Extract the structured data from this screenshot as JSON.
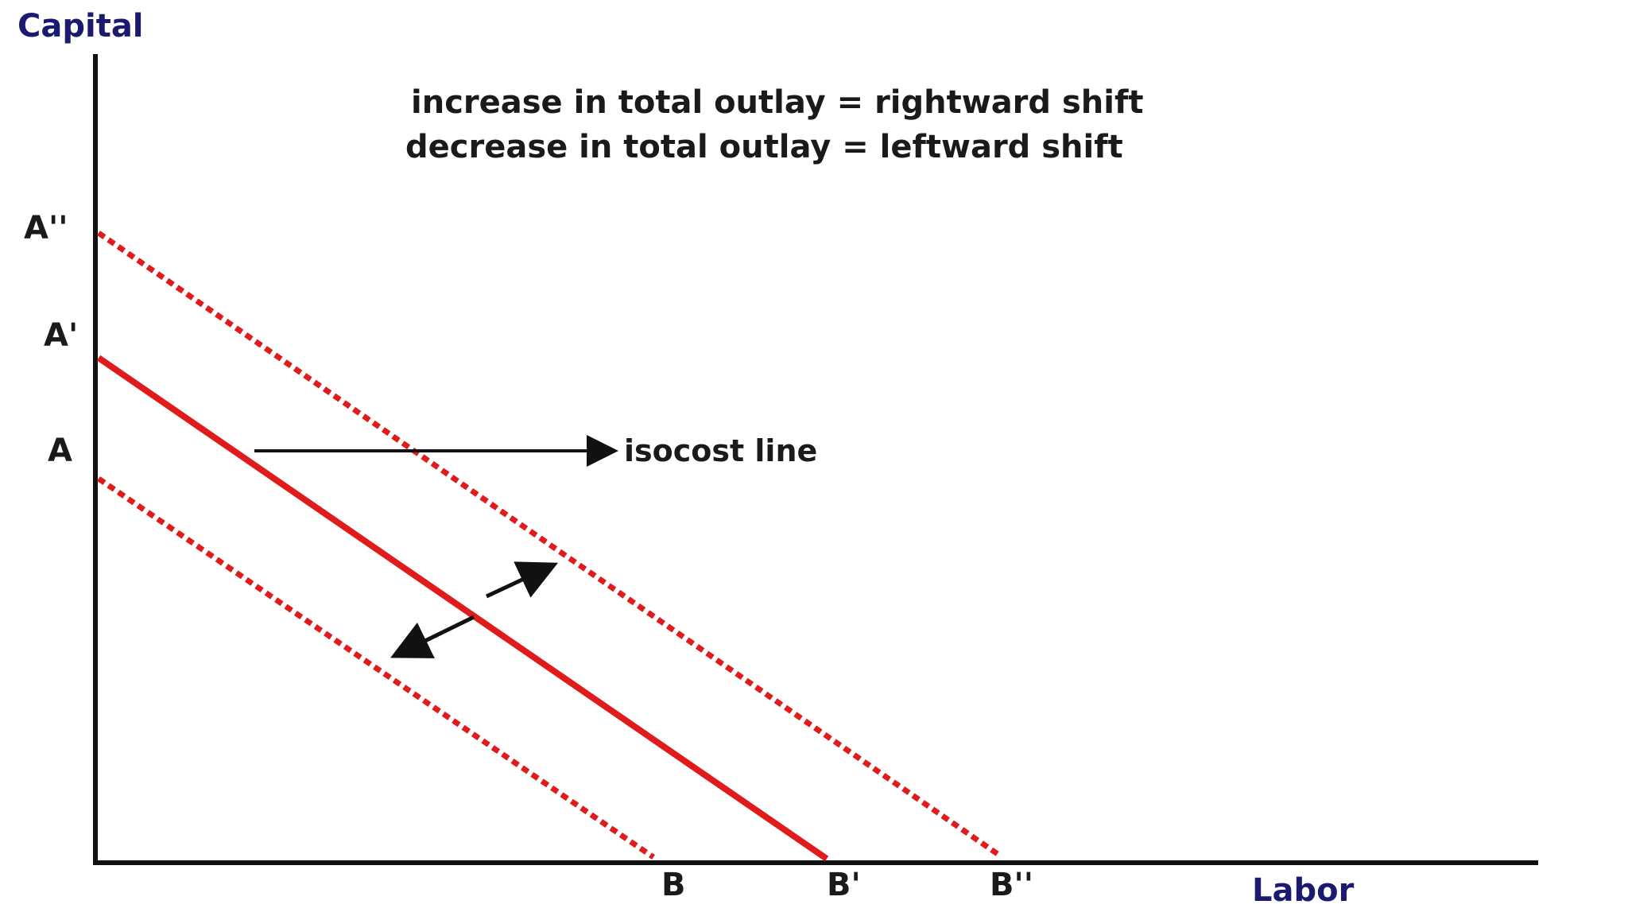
{
  "axes": {
    "y_label": "Capital",
    "x_label": "Labor"
  },
  "y_intercepts": {
    "a": "A",
    "a_prime": "A'",
    "a_double_prime": "A''"
  },
  "x_intercepts": {
    "b": "B",
    "b_prime": "B'",
    "b_double_prime": "B''"
  },
  "notes": {
    "increase": "increase in total outlay = rightward shift",
    "decrease": "decrease in total outlay = leftward shift"
  },
  "callout": {
    "label": "isocost line"
  },
  "lines": {
    "original": {
      "from": "A'",
      "to": "B'",
      "style": "solid"
    },
    "increased": {
      "from": "A''",
      "to": "B''",
      "style": "dashed"
    },
    "decreased": {
      "from": "A",
      "to": "B",
      "style": "dashed"
    }
  },
  "colors": {
    "isocost": "#e01b1b",
    "axis": "#111111",
    "axis_label": "#1a1a6e"
  }
}
